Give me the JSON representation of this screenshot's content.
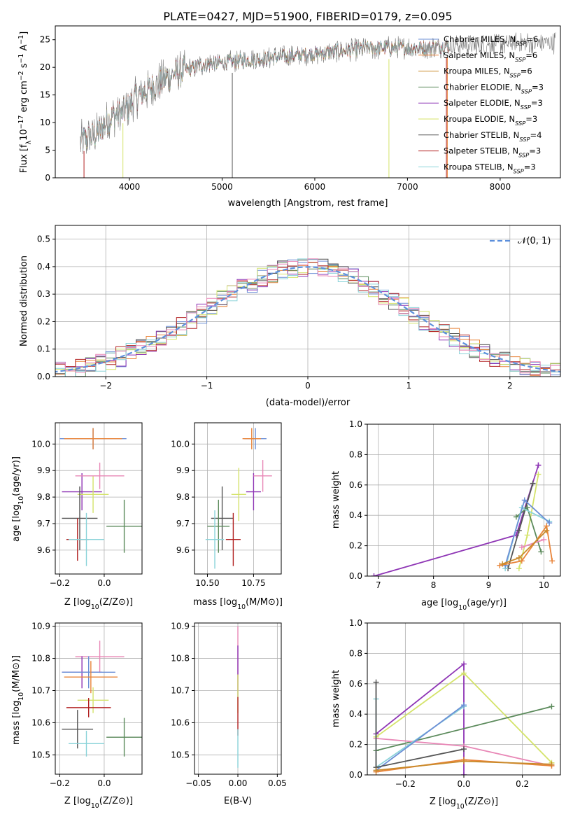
{
  "figure_title": "PLATE=0427, MJD=51900, FIBERID=0179, z=0.095",
  "palette": [
    "#6b8fd6",
    "#e8843a",
    "#c98a2a",
    "#5b8a5b",
    "#8e35b5",
    "#d4e36a",
    "#555555",
    "#b22222",
    "#8ad3d9",
    "#e887b6"
  ],
  "chart_data": [
    {
      "id": "spectrum",
      "type": "line",
      "title": "PLATE=0427, MJD=51900, FIBERID=0179, z=0.095",
      "xlabel": "wavelength [Angstrom, rest frame]",
      "ylabel": "Flux [fλ10⁻¹⁷ erg cm⁻² s⁻¹ A⁻¹]",
      "xlim": [
        3200,
        8650
      ],
      "ylim": [
        0,
        27.5
      ],
      "xticks": [
        4000,
        5000,
        6000,
        7000,
        8000
      ],
      "yticks": [
        0,
        5,
        10,
        15,
        20,
        25
      ],
      "grid": false,
      "legend_position": "top-right",
      "continuum": {
        "x": [
          3470,
          3650,
          3800,
          3950,
          4100,
          4300,
          4500,
          4800,
          5100,
          5400,
          5700,
          6000,
          6300,
          6600,
          6900,
          7200,
          7500,
          7800,
          8100,
          8400,
          8600
        ],
        "y": [
          6.5,
          8.0,
          11.0,
          12.0,
          15.0,
          17.0,
          19.0,
          20.5,
          21.0,
          21.5,
          22.0,
          22.5,
          23.0,
          23.5,
          23.5,
          23.5,
          24.0,
          24.0,
          24.3,
          24.5,
          24.5
        ]
      },
      "series": [
        {
          "name": "Chabrier MILES, N_SSP=6"
        },
        {
          "name": "Salpeter MILES, N_SSP=6"
        },
        {
          "name": "Kroupa MILES, N_SSP=6"
        },
        {
          "name": "Chabrier ELODIE, N_SSP=3"
        },
        {
          "name": "Salpeter ELODIE, N_SSP=3"
        },
        {
          "name": "Kroupa ELODIE, N_SSP=3"
        },
        {
          "name": "Chabrier STELIB, N_SSP=4"
        },
        {
          "name": "Salpeter STELIB, N_SSP=3"
        },
        {
          "name": "Kroupa STELIB, N_SSP=3"
        }
      ]
    },
    {
      "id": "residuals",
      "type": "histogram",
      "xlabel": "(data-model)/error",
      "ylabel": "Normed distribution",
      "xlim": [
        -2.5,
        2.5
      ],
      "ylim": [
        0,
        0.55
      ],
      "xticks": [
        -2,
        -1,
        0,
        1,
        2
      ],
      "yticks": [
        0.0,
        0.1,
        0.2,
        0.3,
        0.4,
        0.5
      ],
      "grid": true,
      "bin_width": 0.1,
      "legend_position": "top-right",
      "legend": [
        "𝒩(0, 1)"
      ],
      "normal_curve": {
        "mean": 0,
        "sigma": 1,
        "style": "dashed"
      }
    },
    {
      "id": "age_vs_Z",
      "type": "errorbar",
      "xlabel": "Z [log₁₀(Z/Z⊙)]",
      "ylabel": "age  [log₁₀(age/yr)]",
      "xlim": [
        -0.22,
        0.17
      ],
      "ylim": [
        9.51,
        10.08
      ],
      "xticks": [
        -0.2,
        0.0
      ],
      "yticks": [
        9.6,
        9.7,
        9.8,
        9.9,
        10.0
      ],
      "grid": true,
      "points": [
        {
          "x": -0.05,
          "y": 10.02,
          "xerr": 0.15,
          "yerr": 0.04,
          "color": 0
        },
        {
          "x": -0.05,
          "y": 10.02,
          "xerr": 0.13,
          "yerr": 0.04,
          "color": 1
        },
        {
          "x": -0.1,
          "y": 9.82,
          "xerr": 0.09,
          "yerr": 0.07,
          "color": 4
        },
        {
          "x": -0.05,
          "y": 9.81,
          "xerr": 0.07,
          "yerr": 0.07,
          "color": 5
        },
        {
          "x": -0.02,
          "y": 9.88,
          "xerr": 0.11,
          "yerr": 0.05,
          "color": 9
        },
        {
          "x": -0.11,
          "y": 9.72,
          "xerr": 0.08,
          "yerr": 0.12,
          "color": 6
        },
        {
          "x": 0.09,
          "y": 9.69,
          "xerr": 0.08,
          "yerr": 0.1,
          "color": 3
        },
        {
          "x": -0.12,
          "y": 9.64,
          "xerr": 0.05,
          "yerr": 0.08,
          "color": 7
        },
        {
          "x": -0.08,
          "y": 9.64,
          "xerr": 0.08,
          "yerr": 0.1,
          "color": 8
        }
      ]
    },
    {
      "id": "age_vs_mass",
      "type": "errorbar",
      "xlabel": "mass [log₁₀(M/M⊙)]",
      "ylabel": "",
      "xlim": [
        10.43,
        10.9
      ],
      "ylim": [
        9.51,
        10.08
      ],
      "xticks": [
        10.5,
        10.75
      ],
      "yticks": [
        9.6,
        9.7,
        9.8,
        9.9,
        10.0
      ],
      "grid": true,
      "points": [
        {
          "x": 10.76,
          "y": 10.02,
          "xerr": 0.06,
          "yerr": 0.04,
          "color": 0
        },
        {
          "x": 10.74,
          "y": 10.02,
          "xerr": 0.05,
          "yerr": 0.04,
          "color": 1
        },
        {
          "x": 10.75,
          "y": 9.82,
          "xerr": 0.04,
          "yerr": 0.07,
          "color": 4
        },
        {
          "x": 10.67,
          "y": 9.81,
          "xerr": 0.04,
          "yerr": 0.1,
          "color": 5
        },
        {
          "x": 10.8,
          "y": 9.88,
          "xerr": 0.05,
          "yerr": 0.06,
          "color": 9
        },
        {
          "x": 10.58,
          "y": 9.72,
          "xerr": 0.06,
          "yerr": 0.12,
          "color": 6
        },
        {
          "x": 10.56,
          "y": 9.69,
          "xerr": 0.06,
          "yerr": 0.1,
          "color": 3
        },
        {
          "x": 10.64,
          "y": 9.64,
          "xerr": 0.04,
          "yerr": 0.1,
          "color": 7
        },
        {
          "x": 10.54,
          "y": 9.64,
          "xerr": 0.05,
          "yerr": 0.11,
          "color": 8
        }
      ]
    },
    {
      "id": "mass_weight_vs_age",
      "type": "line",
      "xlabel": "age  [log₁₀(age/yr)]",
      "ylabel": "mass weight",
      "xlim": [
        6.8,
        10.3
      ],
      "ylim": [
        0,
        1.0
      ],
      "xticks": [
        7,
        8,
        9,
        10
      ],
      "yticks": [
        0.0,
        0.2,
        0.4,
        0.6,
        0.8,
        1.0
      ],
      "grid": true,
      "series": [
        {
          "color": 4,
          "x": [
            6.92,
            9.5,
            9.9,
            9.9
          ],
          "y": [
            0.0,
            0.27,
            0.73,
            0.73
          ]
        },
        {
          "color": 5,
          "x": [
            9.55,
            9.7,
            9.9
          ],
          "y": [
            0.05,
            0.27,
            0.67
          ]
        },
        {
          "color": 6,
          "x": [
            9.35,
            9.55,
            9.8
          ],
          "y": [
            0.05,
            0.3,
            0.61
          ]
        },
        {
          "color": 3,
          "x": [
            9.5,
            9.7,
            9.95
          ],
          "y": [
            0.39,
            0.45,
            0.16
          ]
        },
        {
          "color": 8,
          "x": [
            9.3,
            9.6,
            10.1
          ],
          "y": [
            0.05,
            0.45,
            0.36
          ]
        },
        {
          "color": 0,
          "x": [
            9.3,
            9.65,
            10.1
          ],
          "y": [
            0.07,
            0.5,
            0.35
          ]
        },
        {
          "color": 9,
          "x": [
            9.6,
            10.0
          ],
          "y": [
            0.19,
            0.24
          ]
        },
        {
          "color": 1,
          "x": [
            9.2,
            9.6,
            10.05,
            10.15
          ],
          "y": [
            0.07,
            0.1,
            0.33,
            0.1
          ]
        },
        {
          "color": 2,
          "x": [
            9.25,
            9.55,
            10.05
          ],
          "y": [
            0.08,
            0.12,
            0.3
          ]
        }
      ]
    },
    {
      "id": "mass_vs_Z",
      "type": "errorbar",
      "xlabel": "Z [log₁₀(Z/Z⊙)]",
      "ylabel": "mass [log₁₀(M/M⊙)]",
      "xlim": [
        -0.22,
        0.17
      ],
      "ylim": [
        10.44,
        10.91
      ],
      "xticks": [
        -0.2,
        0.0
      ],
      "yticks": [
        10.5,
        10.6,
        10.7,
        10.8,
        10.9
      ],
      "grid": true,
      "points": [
        {
          "x": -0.02,
          "y": 10.805,
          "xerr": 0.11,
          "yerr": 0.05,
          "color": 9
        },
        {
          "x": -0.1,
          "y": 10.757,
          "xerr": 0.09,
          "yerr": 0.05,
          "color": 4
        },
        {
          "x": -0.07,
          "y": 10.757,
          "xerr": 0.12,
          "yerr": 0.05,
          "color": 0
        },
        {
          "x": -0.06,
          "y": 10.742,
          "xerr": 0.12,
          "yerr": 0.05,
          "color": 1
        },
        {
          "x": -0.05,
          "y": 10.67,
          "xerr": 0.07,
          "yerr": 0.04,
          "color": 5
        },
        {
          "x": -0.07,
          "y": 10.647,
          "xerr": 0.1,
          "yerr": 0.03,
          "color": 7
        },
        {
          "x": -0.12,
          "y": 10.58,
          "xerr": 0.07,
          "yerr": 0.06,
          "color": 6
        },
        {
          "x": 0.09,
          "y": 10.555,
          "xerr": 0.08,
          "yerr": 0.06,
          "color": 3
        },
        {
          "x": -0.08,
          "y": 10.535,
          "xerr": 0.08,
          "yerr": 0.04,
          "color": 8
        }
      ]
    },
    {
      "id": "mass_vs_ebv",
      "type": "errorbar",
      "xlabel": "E(B-V)",
      "ylabel": "",
      "xlim": [
        -0.055,
        0.055
      ],
      "ylim": [
        10.44,
        10.91
      ],
      "xticks": [
        -0.05,
        0.0,
        0.05
      ],
      "yticks": [
        10.5,
        10.6,
        10.7,
        10.8,
        10.9
      ],
      "grid": true,
      "points": [
        {
          "x": 0.0,
          "y": 10.8,
          "xerr": 0,
          "yerr": 0.1,
          "color": 9
        },
        {
          "x": 0.0,
          "y": 10.76,
          "xerr": 0,
          "yerr": 0.08,
          "color": 4
        },
        {
          "x": 0.0,
          "y": 10.69,
          "xerr": 0,
          "yerr": 0.06,
          "color": 5
        },
        {
          "x": 0.0,
          "y": 10.62,
          "xerr": 0,
          "yerr": 0.06,
          "color": 7
        },
        {
          "x": 0.0,
          "y": 10.52,
          "xerr": 0,
          "yerr": 0.06,
          "color": 8
        }
      ]
    },
    {
      "id": "mass_weight_vs_Z",
      "type": "line",
      "xlabel": "Z [log₁₀(Z/Z⊙)]",
      "ylabel": "mass weight",
      "xlim": [
        -0.33,
        0.33
      ],
      "ylim": [
        0,
        1.0
      ],
      "xticks": [
        -0.2,
        0.0,
        0.2
      ],
      "yticks": [
        0.0,
        0.2,
        0.4,
        0.6,
        0.8,
        1.0
      ],
      "grid": true,
      "series": [
        {
          "color": 4,
          "x": [
            -0.3,
            0.0,
            0.0
          ],
          "y": [
            0.27,
            0.73,
            0.0
          ]
        },
        {
          "color": 5,
          "x": [
            -0.3,
            0.0,
            0.3
          ],
          "y": [
            0.25,
            0.67,
            0.08
          ]
        },
        {
          "color": 3,
          "x": [
            -0.3,
            0.3
          ],
          "y": [
            0.16,
            0.45
          ]
        },
        {
          "color": 9,
          "x": [
            -0.3,
            0.0,
            0.3
          ],
          "y": [
            0.24,
            0.19,
            0.06
          ]
        },
        {
          "color": 8,
          "x": [
            -0.3,
            -0.3,
            0.0
          ],
          "y": [
            0.5,
            0.05,
            0.45
          ]
        },
        {
          "color": 0,
          "x": [
            -0.3,
            0.0
          ],
          "y": [
            0.03,
            0.46
          ]
        },
        {
          "color": 6,
          "x": [
            -0.3,
            -0.3,
            0.0
          ],
          "y": [
            0.61,
            0.05,
            0.17
          ]
        },
        {
          "color": 1,
          "x": [
            -0.3,
            0.0,
            0.3
          ],
          "y": [
            0.02,
            0.1,
            0.06
          ]
        },
        {
          "color": 2,
          "x": [
            -0.3,
            0.0,
            0.3
          ],
          "y": [
            0.03,
            0.09,
            0.07
          ]
        }
      ]
    }
  ]
}
